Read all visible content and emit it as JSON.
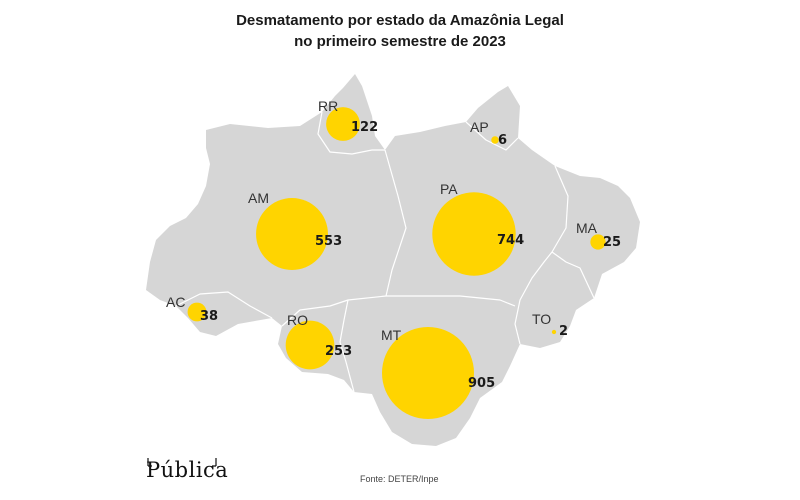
{
  "title": {
    "line1": "Desmatamento por estado da Amazônia Legal",
    "line2": "no primeiro semestre de 2023"
  },
  "source": "Fonte: DETER/Inpe",
  "logo": "Pública",
  "colors": {
    "land": "#d6d6d6",
    "border": "#ffffff",
    "bubble": "#ffd400"
  },
  "map_data": {
    "metric": "deforestation",
    "states": [
      {
        "abbr": "RR",
        "value": 122
      },
      {
        "abbr": "AP",
        "value": 6
      },
      {
        "abbr": "AM",
        "value": 553
      },
      {
        "abbr": "PA",
        "value": 744
      },
      {
        "abbr": "MA",
        "value": 25
      },
      {
        "abbr": "AC",
        "value": 38
      },
      {
        "abbr": "RO",
        "value": 253
      },
      {
        "abbr": "TO",
        "value": 2
      },
      {
        "abbr": "MT",
        "value": 905
      }
    ]
  }
}
